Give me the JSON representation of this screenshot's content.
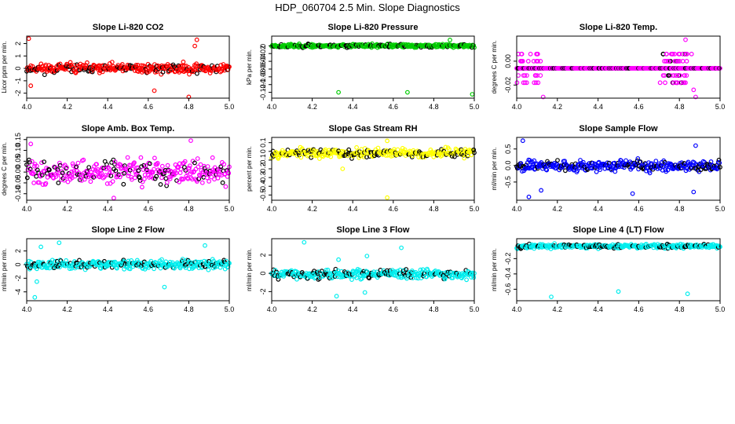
{
  "title": "HDP_060704  2.5 Min. Slope Diagnostics",
  "chart_data": [
    {
      "type": "scatter",
      "title": "Slope Li-820 CO2",
      "ylabel": "Licor ppm per min.",
      "color": "#ff0000",
      "xlim": [
        4.0,
        5.0
      ],
      "ylim": [
        -2.4,
        2.6
      ],
      "yticks": [
        -2,
        -1,
        0,
        1,
        2
      ],
      "xticks": [
        "4.0",
        "4.2",
        "4.4",
        "4.6",
        "4.8",
        "5.0"
      ],
      "base": 0.0,
      "spread": 0.35,
      "seed": 11,
      "outliers": [
        [
          4.01,
          2.4
        ],
        [
          4.02,
          -1.4
        ],
        [
          4.63,
          -1.8
        ],
        [
          4.8,
          -2.3
        ],
        [
          4.84,
          2.3
        ],
        [
          4.83,
          1.8
        ]
      ]
    },
    {
      "type": "scatter",
      "title": "Slope Li-820 Pressure",
      "ylabel": "kPa per min.",
      "color": "#00cc00",
      "xlim": [
        4.0,
        5.0
      ],
      "ylim": [
        -0.135,
        0.025
      ],
      "yticks": [
        -0.12,
        -0.1,
        -0.08,
        -0.06,
        -0.04,
        -0.02,
        0.0
      ],
      "xticks": [
        "4.0",
        "4.2",
        "4.4",
        "4.6",
        "4.8",
        "5.0"
      ],
      "base": 0.0,
      "spread": 0.004,
      "seed": 23,
      "outliers": [
        [
          4.33,
          -0.12
        ],
        [
          4.67,
          -0.12
        ],
        [
          4.99,
          -0.125
        ],
        [
          4.88,
          0.015
        ]
      ]
    },
    {
      "type": "scatter",
      "title": "Slope Li-820 Temp.",
      "ylabel": "degrees C per min.",
      "color": "#ff00ff",
      "xlim": [
        4.0,
        5.0
      ],
      "ylim": [
        -0.031,
        0.021
      ],
      "yticks": [
        -0.02,
        0.0
      ],
      "ytick_labels": [
        "-0.02",
        "0.00"
      ],
      "xticks": [
        "4.0",
        "4.2",
        "4.4",
        "4.6",
        "4.8",
        "5.0"
      ],
      "base": -0.006,
      "spread": 0.0,
      "seed": 37,
      "outliers": [
        [
          4.03,
          0.0
        ],
        [
          4.05,
          -0.012
        ],
        [
          4.13,
          -0.03
        ],
        [
          4.83,
          0.018
        ],
        [
          4.86,
          0.006
        ],
        [
          4.87,
          -0.024
        ],
        [
          4.88,
          -0.03
        ]
      ]
    },
    {
      "type": "scatter",
      "title": "Slope Amb. Box Temp.",
      "ylabel": "degrees C per min.",
      "color": "#ff00ff",
      "xlim": [
        4.0,
        5.0
      ],
      "ylim": [
        -0.13,
        0.16
      ],
      "yticks": [
        -0.1,
        -0.05,
        0.0,
        0.05,
        0.1,
        0.15
      ],
      "ytick_labels": [
        "-0.10",
        "-0.05",
        "0.00",
        "0.05",
        "0.10",
        "0.15"
      ],
      "xticks": [
        "4.0",
        "4.2",
        "4.4",
        "4.6",
        "4.8",
        "5.0"
      ],
      "base": 0.0,
      "spread": 0.05,
      "seed": 41,
      "outliers": [
        [
          4.81,
          0.145
        ],
        [
          4.02,
          0.13
        ],
        [
          4.43,
          -0.12
        ]
      ]
    },
    {
      "type": "scatter",
      "title": "Slope Gas Stream RH",
      "ylabel": "percent per min.",
      "color": "#ffff00",
      "xlim": [
        4.0,
        5.0
      ],
      "ylim": [
        -0.56,
        0.16
      ],
      "yticks": [
        -0.5,
        -0.4,
        -0.3,
        -0.2,
        -0.1,
        0.0,
        0.1
      ],
      "xticks": [
        "4.0",
        "4.2",
        "4.4",
        "4.6",
        "4.8",
        "5.0"
      ],
      "base": -0.02,
      "spread": 0.05,
      "seed": 53,
      "outliers": [
        [
          4.57,
          -0.53
        ],
        [
          4.57,
          0.12
        ],
        [
          4.35,
          -0.2
        ]
      ]
    },
    {
      "type": "scatter",
      "title": "Slope Sample Flow",
      "ylabel": "ml/min per min.",
      "color": "#0000ff",
      "xlim": [
        4.0,
        5.0
      ],
      "ylim": [
        -1.05,
        0.85
      ],
      "yticks": [
        -0.5,
        0.0,
        0.5
      ],
      "ytick_labels": [
        "-0.5",
        "0.0",
        "0.5"
      ],
      "xticks": [
        "4.0",
        "4.2",
        "4.4",
        "4.6",
        "4.8",
        "5.0"
      ],
      "base": 0.0,
      "spread": 0.15,
      "seed": 67,
      "outliers": [
        [
          4.03,
          0.75
        ],
        [
          4.06,
          -0.95
        ],
        [
          4.12,
          -0.75
        ],
        [
          4.87,
          -0.8
        ],
        [
          4.88,
          0.6
        ],
        [
          4.57,
          -0.85
        ]
      ]
    },
    {
      "type": "scatter",
      "title": "Slope Line 2 Flow",
      "ylabel": "ml/min per min.",
      "color": "#00eeee",
      "xlim": [
        4.0,
        5.0
      ],
      "ylim": [
        -5.3,
        3.8
      ],
      "yticks": [
        -4,
        -2,
        0,
        2
      ],
      "xticks": [
        "4.0",
        "4.2",
        "4.4",
        "4.6",
        "4.8",
        "5.0"
      ],
      "base": 0.0,
      "spread": 0.6,
      "seed": 79,
      "outliers": [
        [
          4.04,
          -4.8
        ],
        [
          4.05,
          -2.5
        ],
        [
          4.16,
          3.2
        ],
        [
          4.07,
          2.6
        ],
        [
          4.88,
          2.8
        ],
        [
          4.68,
          -3.3
        ]
      ]
    },
    {
      "type": "scatter",
      "title": "Slope Line 3 Flow",
      "ylabel": "ml/min per min.",
      "color": "#00eeee",
      "xlim": [
        4.0,
        5.0
      ],
      "ylim": [
        -3.0,
        3.8
      ],
      "yticks": [
        -2,
        0,
        2
      ],
      "xticks": [
        "4.0",
        "4.2",
        "4.4",
        "4.6",
        "4.8",
        "5.0"
      ],
      "base": -0.1,
      "spread": 0.45,
      "seed": 83,
      "outliers": [
        [
          4.16,
          3.4
        ],
        [
          4.32,
          -2.5
        ],
        [
          4.46,
          -2.1
        ],
        [
          4.47,
          1.9
        ],
        [
          4.64,
          2.8
        ],
        [
          4.33,
          1.5
        ]
      ]
    },
    {
      "type": "scatter",
      "title": "Slope Line 4 (LT) Flow",
      "ylabel": "ml/min per min.",
      "color": "#00eeee",
      "xlim": [
        4.0,
        5.0
      ],
      "ylim": [
        -0.75,
        0.06
      ],
      "yticks": [
        -0.6,
        -0.4,
        -0.2
      ],
      "ytick_labels": [
        "-0.6",
        "-0.4",
        "-0.2"
      ],
      "xticks": [
        "4.0",
        "4.2",
        "4.4",
        "4.6",
        "4.8",
        "5.0"
      ],
      "base": -0.04,
      "spread": 0.025,
      "seed": 97,
      "outliers": [
        [
          4.17,
          -0.7
        ],
        [
          4.5,
          -0.63
        ],
        [
          4.84,
          -0.66
        ]
      ]
    }
  ]
}
